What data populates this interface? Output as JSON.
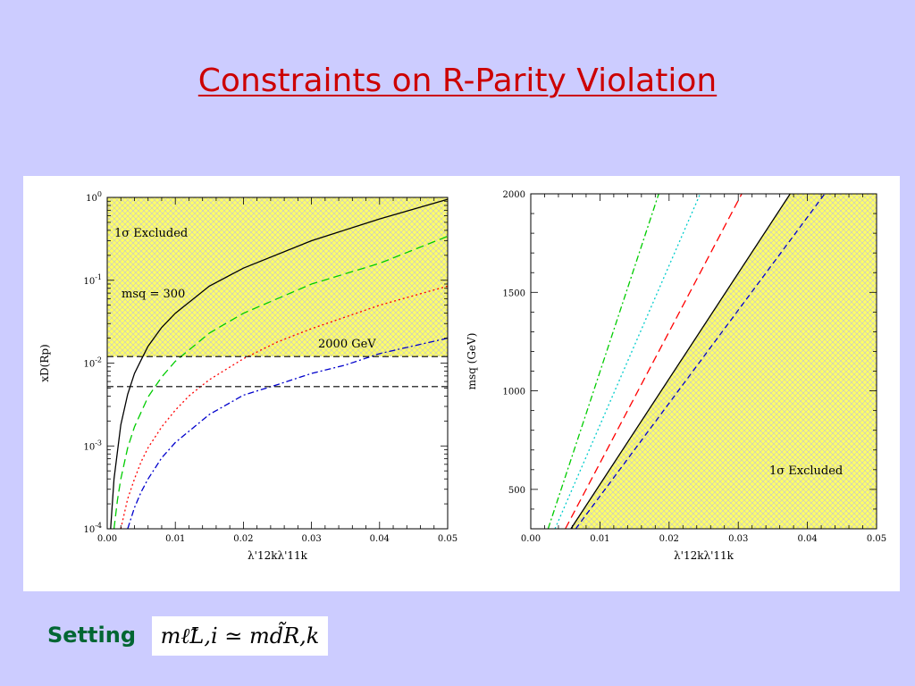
{
  "slide": {
    "title": "Constraints on R-Parity Violation",
    "setting_label": "Setting",
    "formula_text": "mℓ̃L,i ≃ md̃R,k"
  },
  "colors": {
    "background": "#ccccff",
    "title": "#cc0000",
    "setting": "#006633",
    "hatch_fill": "#ffff66",
    "hatch_line": "#cccccc"
  },
  "chart_data": [
    {
      "type": "line",
      "y_scale": "log",
      "xlabel": "λ'12kλ'11k",
      "ylabel": "xD(Rp)",
      "xlim": [
        0.0,
        0.05
      ],
      "ylim": [
        0.0001,
        1
      ],
      "x_ticks": [
        "0.00",
        "0.01",
        "0.02",
        "0.03",
        "0.04",
        "0.05"
      ],
      "y_ticks": [
        {
          "base": "10",
          "exp": "-4"
        },
        {
          "base": "10",
          "exp": "-3"
        },
        {
          "base": "10",
          "exp": "-2"
        },
        {
          "base": "10",
          "exp": "-1"
        },
        {
          "base": "10",
          "exp": "0"
        }
      ],
      "annotations": {
        "excluded": "1σ Excluded",
        "msq_300": "msq = 300",
        "msq_2000": "2000 GeV"
      },
      "excluded_threshold": 0.012,
      "hlines": [
        0.012,
        0.0052
      ],
      "series": [
        {
          "color": "#000000",
          "dash": "solid",
          "x": [
            0.0005,
            0.001,
            0.002,
            0.003,
            0.004,
            0.005,
            0.006,
            0.008,
            0.01,
            0.015,
            0.02,
            0.03,
            0.04,
            0.05
          ],
          "y": [
            0.0001,
            0.0004,
            0.0018,
            0.0042,
            0.0075,
            0.011,
            0.016,
            0.027,
            0.04,
            0.085,
            0.14,
            0.3,
            0.55,
            0.95
          ]
        },
        {
          "color": "#00cc00",
          "dash": "longdash",
          "x": [
            0.001,
            0.0015,
            0.002,
            0.003,
            0.004,
            0.006,
            0.008,
            0.01,
            0.015,
            0.02,
            0.03,
            0.04,
            0.05
          ],
          "y": [
            0.0001,
            0.00022,
            0.0004,
            0.00095,
            0.0017,
            0.0039,
            0.0068,
            0.0105,
            0.023,
            0.04,
            0.09,
            0.16,
            0.34
          ]
        },
        {
          "color": "#ff0000",
          "dash": "dotted",
          "x": [
            0.002,
            0.003,
            0.004,
            0.005,
            0.006,
            0.008,
            0.01,
            0.012,
            0.015,
            0.02,
            0.025,
            0.03,
            0.04,
            0.05
          ],
          "y": [
            0.0001,
            0.00023,
            0.0004,
            0.00065,
            0.00095,
            0.0017,
            0.0027,
            0.004,
            0.0063,
            0.0113,
            0.018,
            0.026,
            0.05,
            0.085
          ]
        },
        {
          "color": "#0000cc",
          "dash": "dashdot",
          "x": [
            0.003,
            0.004,
            0.005,
            0.006,
            0.008,
            0.01,
            0.015,
            0.02,
            0.025,
            0.03,
            0.035,
            0.04,
            0.05
          ],
          "y": [
            0.0001,
            0.00018,
            0.00028,
            0.0004,
            0.00072,
            0.0011,
            0.0024,
            0.0041,
            0.0055,
            0.0075,
            0.0095,
            0.013,
            0.02
          ]
        }
      ]
    },
    {
      "type": "line",
      "xlabel": "λ'12kλ'11k",
      "ylabel": "msq (GeV)",
      "xlim": [
        0.0,
        0.05
      ],
      "ylim": [
        300,
        2000
      ],
      "x_ticks": [
        "0.00",
        "0.01",
        "0.02",
        "0.03",
        "0.04",
        "0.05"
      ],
      "y_ticks": [
        "500",
        "1000",
        "1500",
        "2000"
      ],
      "annotations": {
        "excluded": "1σ Excluded"
      },
      "series": [
        {
          "color": "#00cc00",
          "dash": "dashdot",
          "x": [
            0.0025,
            0.0185
          ],
          "y": [
            300,
            2000
          ]
        },
        {
          "color": "#00cccc",
          "dash": "dotted",
          "x": [
            0.0035,
            0.0245
          ],
          "y": [
            300,
            2000
          ]
        },
        {
          "color": "#ff0000",
          "dash": "longdash",
          "x": [
            0.005,
            0.0305
          ],
          "y": [
            300,
            2000
          ]
        },
        {
          "color": "#000000",
          "dash": "solid",
          "x": [
            0.0058,
            0.0375
          ],
          "y": [
            300,
            2000
          ]
        },
        {
          "color": "#0000cc",
          "dash": "dashed",
          "x": [
            0.0065,
            0.0425
          ],
          "y": [
            300,
            2000
          ]
        }
      ]
    }
  ]
}
